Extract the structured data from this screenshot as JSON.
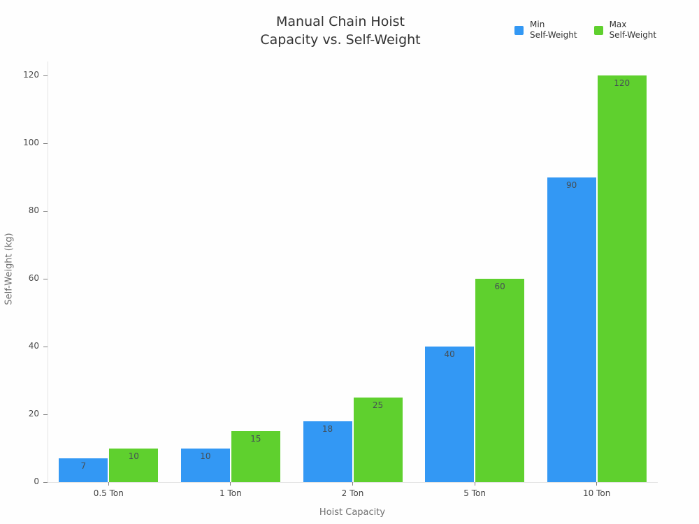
{
  "chart_data": {
    "type": "bar",
    "title_line1": "Manual Chain Hoist",
    "title_line2": "Capacity vs. Self-Weight",
    "xlabel": "Hoist Capacity",
    "ylabel": "Self-Weight (kg)",
    "categories": [
      "0.5 Ton",
      "1 Ton",
      "2 Ton",
      "5 Ton",
      "10 Ton"
    ],
    "series": [
      {
        "name": "Min Self-Weight",
        "legend_line1": "Min",
        "legend_line2": "Self-Weight",
        "color": "#3398F4",
        "values": [
          7,
          10,
          18,
          40,
          90
        ]
      },
      {
        "name": "Max Self-Weight",
        "legend_line1": "Max",
        "legend_line2": "Self-Weight",
        "color": "#5FD02E",
        "values": [
          10,
          15,
          25,
          60,
          120
        ]
      }
    ],
    "yticks": [
      0,
      20,
      40,
      60,
      80,
      100,
      120
    ],
    "ylim": [
      0,
      124
    ],
    "grid": false,
    "legend_position": "top-right"
  },
  "colors": {
    "background": "#fefefe",
    "title_text": "#333333",
    "tick_label": "#4a4a4a",
    "axis_title": "#707070",
    "axis_line": "#e3e3e3",
    "value_label": "#454e55"
  }
}
